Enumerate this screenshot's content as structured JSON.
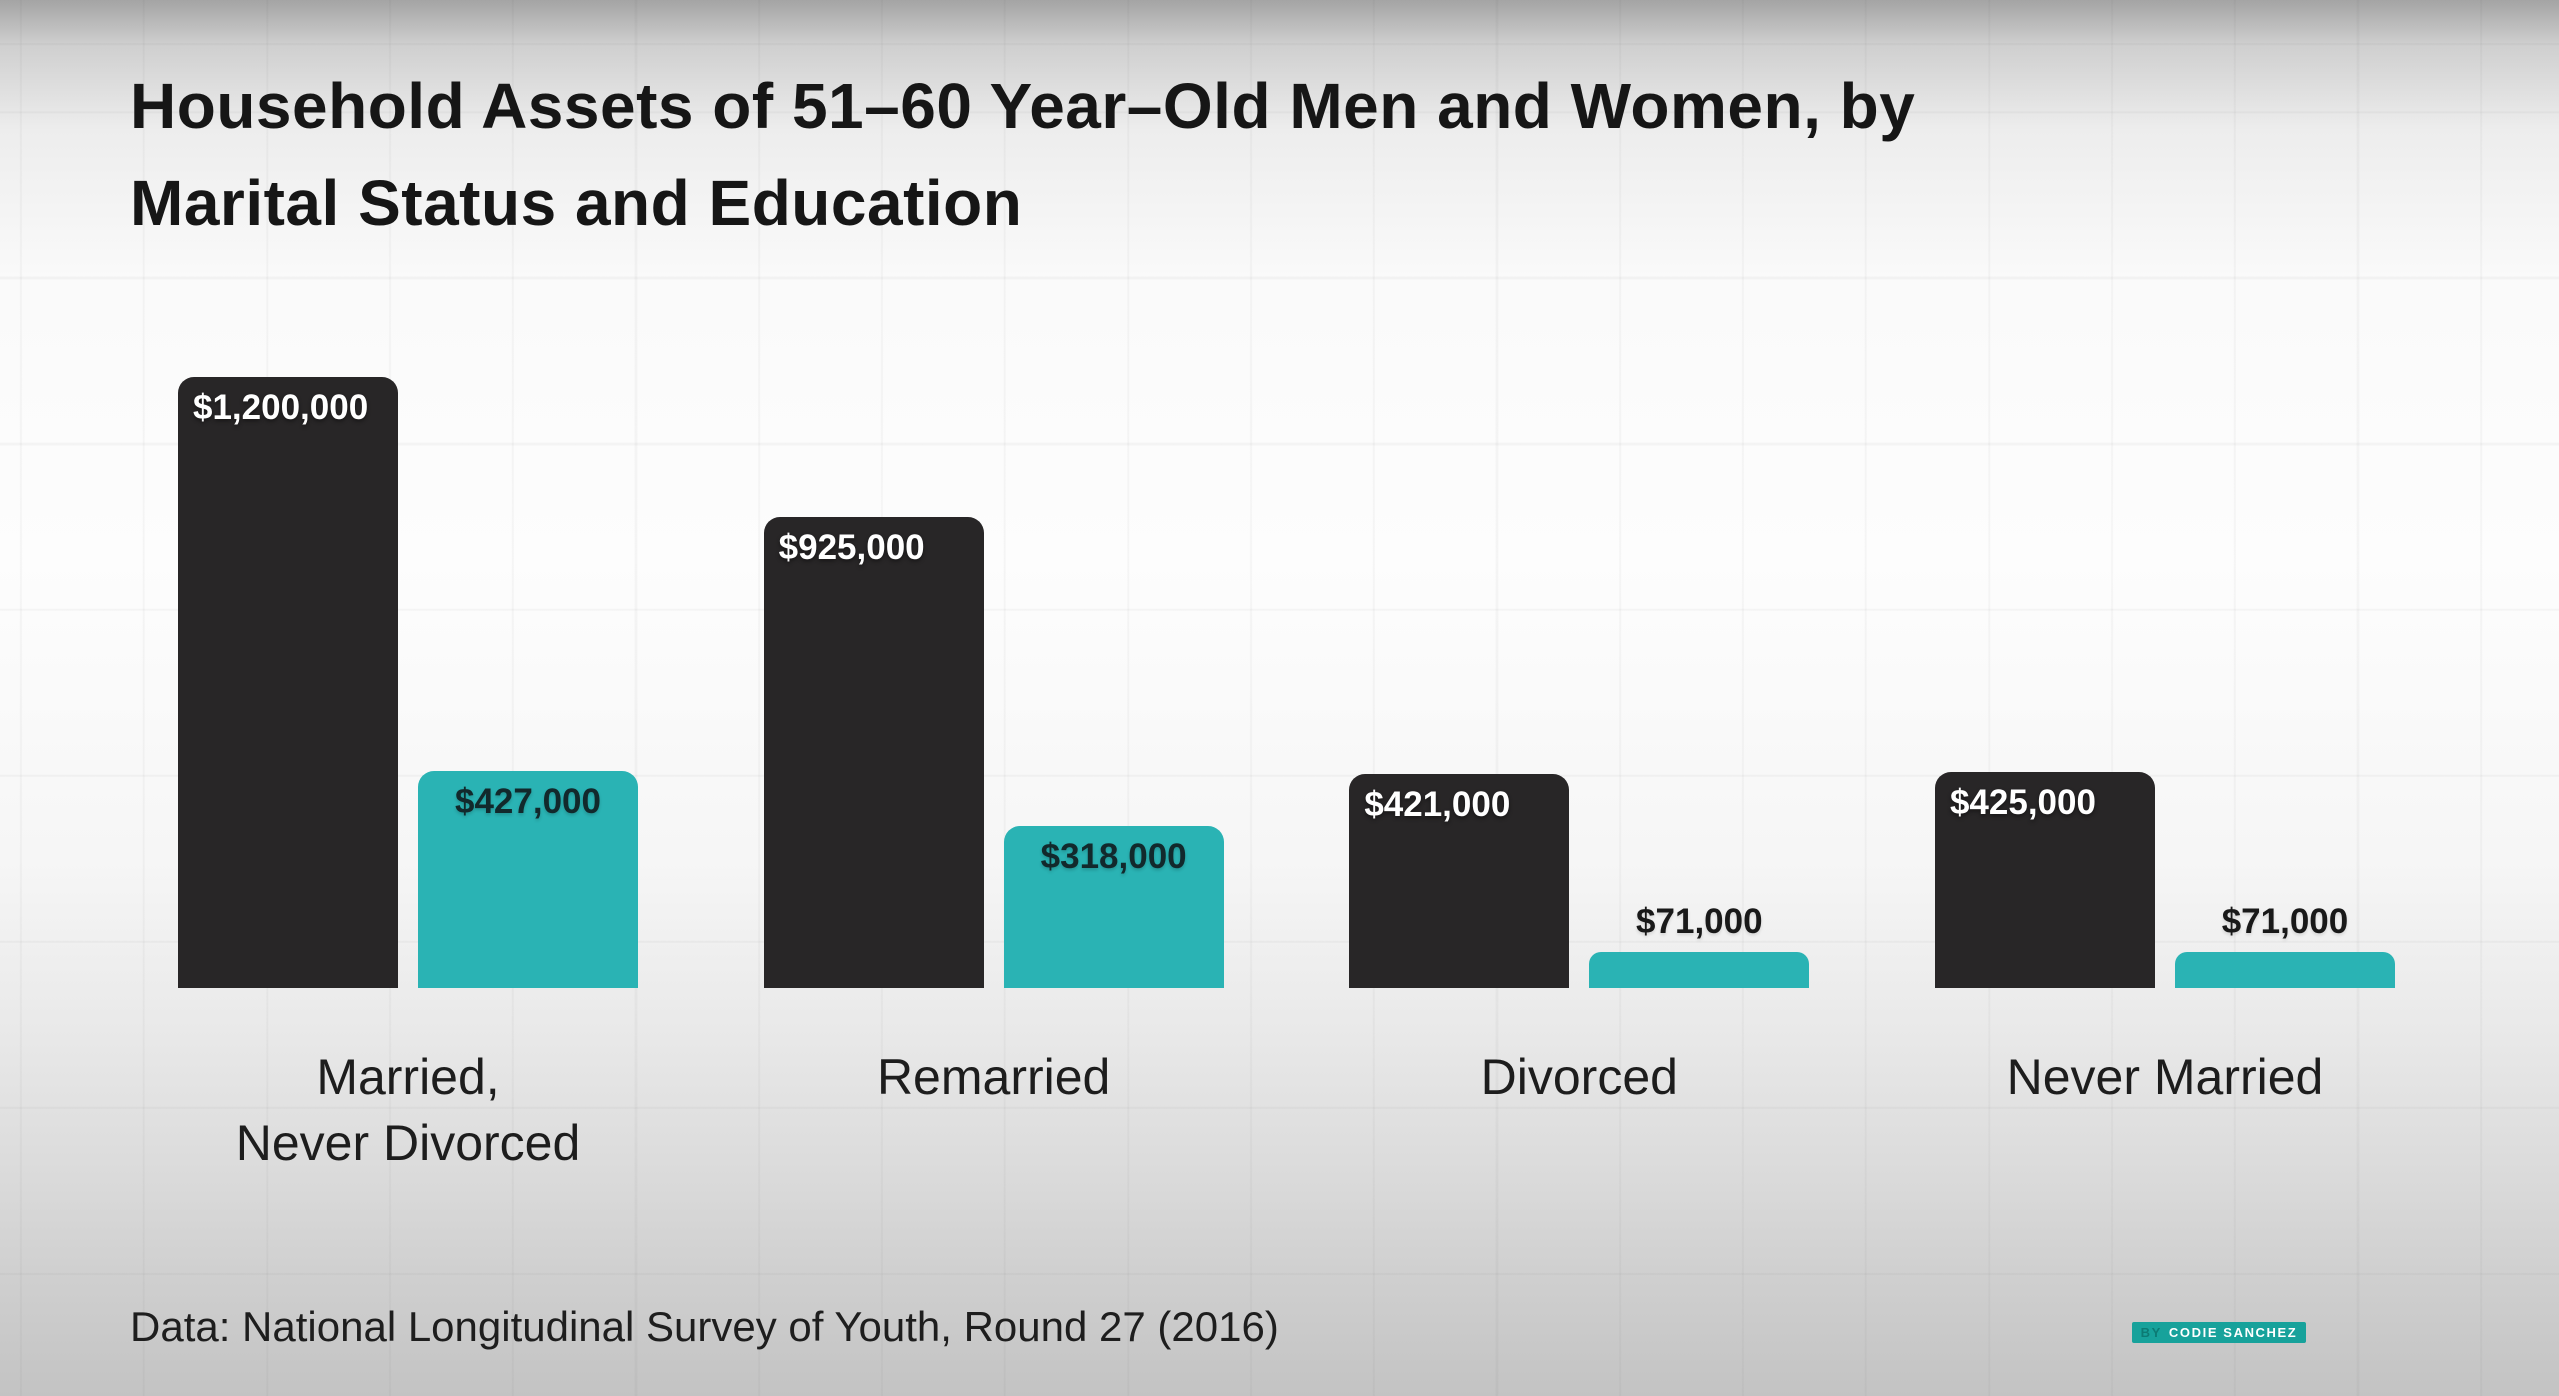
{
  "page": {
    "title_line1": "Household Assets of 51–60 Year–Old Men and Women, by",
    "title_line2": "Marital Status and Education",
    "source_note": "Data: National Longitudinal Survey of Youth, Round 27 (2016)",
    "badge": {
      "prefix": "BY",
      "name": "CODIE SANCHEZ"
    }
  },
  "colors": {
    "dark_bar": "#282627",
    "teal_bar": "#2ab3b4",
    "badge_background": "#17a29b",
    "title_text": "#161616",
    "label_on_dark": "#ffffff",
    "label_on_teal": "#12292c"
  },
  "chart_data": {
    "type": "bar",
    "title": "Household Assets of 51–60 Year–Old Men and Women, by Marital Status and Education",
    "categories": [
      "Married,\nNever Divorced",
      "Remarried",
      "Divorced",
      "Never Married"
    ],
    "series": [
      {
        "name": "dark",
        "color": "#282627",
        "values": [
          1200000,
          925000,
          421000,
          425000
        ],
        "labels": [
          "$1,200,000",
          "$925,000",
          "$421,000",
          "$425,000"
        ]
      },
      {
        "name": "teal",
        "color": "#2ab3b4",
        "values": [
          427000,
          318000,
          71000,
          71000
        ],
        "labels": [
          "$427,000",
          "$318,000",
          "$71,000",
          "$71,000"
        ]
      }
    ],
    "value_prefix": "$",
    "ylim": [
      0,
      1200000
    ],
    "grid": true,
    "legend": "none",
    "xlabel": "",
    "ylabel": "",
    "source": "National Longitudinal Survey of Youth, Round 27 (2016)"
  }
}
